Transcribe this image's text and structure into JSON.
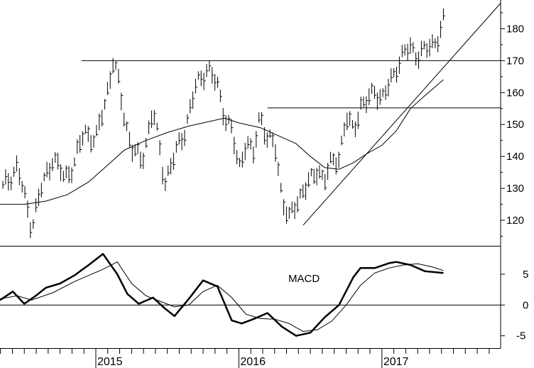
{
  "chart_data": [
    {
      "type": "ohlc",
      "title": "",
      "xlabel": "",
      "ylabel": "",
      "ylim": [
        112,
        189
      ],
      "yticks": [
        120,
        130,
        140,
        150,
        160,
        170,
        180
      ],
      "x_axis_years": [
        "2015",
        "2016",
        "2017"
      ],
      "x_range": [
        2014.33,
        2017.83
      ],
      "grid": false,
      "price_series": {
        "x": [
          2014.35,
          2014.45,
          2014.55,
          2014.62,
          2014.7,
          2014.78,
          2014.85,
          2014.92,
          2015.0,
          2015.07,
          2015.12,
          2015.15,
          2015.2,
          2015.25,
          2015.32,
          2015.4,
          2015.48,
          2015.55,
          2015.62,
          2015.7,
          2015.78,
          2015.85,
          2015.9,
          2015.95,
          2016.0,
          2016.05,
          2016.1,
          2016.15,
          2016.2,
          2016.25,
          2016.3,
          2016.35,
          2016.4,
          2016.45,
          2016.5,
          2016.55,
          2016.6,
          2016.65,
          2016.7,
          2016.75,
          2016.8,
          2016.85,
          2016.9,
          2016.95,
          2017.0,
          2017.05,
          2017.1,
          2017.15,
          2017.2,
          2017.25,
          2017.3,
          2017.35,
          2017.4,
          2017.43
        ],
        "y": [
          130,
          137,
          118,
          130,
          140,
          133,
          138,
          148,
          145,
          158,
          170,
          165,
          152,
          143,
          138,
          155,
          132,
          140,
          148,
          162,
          168,
          162,
          153,
          148,
          136,
          145,
          140,
          154,
          145,
          144,
          128,
          120,
          125,
          130,
          132,
          136,
          133,
          138,
          140,
          152,
          148,
          156,
          157,
          161,
          158,
          162,
          168,
          172,
          174,
          172,
          173,
          175,
          178,
          182
        ]
      },
      "moving_average": {
        "x": [
          2014.33,
          2014.5,
          2014.65,
          2014.8,
          2014.95,
          2015.1,
          2015.2,
          2015.35,
          2015.5,
          2015.65,
          2015.8,
          2015.9,
          2016.0,
          2016.15,
          2016.3,
          2016.4,
          2016.5,
          2016.6,
          2016.7,
          2016.8,
          2016.9,
          2017.0,
          2017.1,
          2017.2,
          2017.3,
          2017.43
        ],
        "y": [
          125,
          125,
          126,
          128,
          132,
          138,
          142,
          145,
          147.5,
          149.5,
          151,
          152,
          150.5,
          149,
          146,
          144,
          140,
          136.5,
          136,
          138,
          141,
          143.5,
          148,
          155,
          159,
          164
        ]
      },
      "horizontal_lines": [
        {
          "y": 170,
          "x_start": 2014.9,
          "x_end": 2017.83
        },
        {
          "y": 155.2,
          "x_start": 2016.2,
          "x_end": 2017.83
        }
      ],
      "trend_line": {
        "x": [
          2016.45,
          2017.83
        ],
        "y": [
          118.5,
          188
        ]
      }
    },
    {
      "type": "line",
      "title": "MACD",
      "xlabel": "",
      "ylabel": "",
      "ylim": [
        -7,
        9.5
      ],
      "yticks": [
        -5,
        0,
        5
      ],
      "zero_line": true,
      "series": [
        {
          "style": "thick",
          "x": [
            2014.33,
            2014.42,
            2014.5,
            2014.58,
            2014.65,
            2014.75,
            2014.85,
            2014.95,
            2015.05,
            2015.15,
            2015.22,
            2015.3,
            2015.4,
            2015.48,
            2015.55,
            2015.65,
            2015.75,
            2015.85,
            2015.95,
            2016.02,
            2016.1,
            2016.2,
            2016.3,
            2016.4,
            2016.5,
            2016.6,
            2016.7,
            2016.8,
            2016.85,
            2016.95,
            2017.05,
            2017.1,
            2017.2,
            2017.3,
            2017.43
          ],
          "y": [
            0.8,
            2.2,
            0.2,
            1.5,
            2.8,
            3.5,
            4.8,
            6.5,
            8.3,
            5,
            1.8,
            0.2,
            1.2,
            -0.5,
            -1.8,
            1,
            4,
            3,
            -2.5,
            -3,
            -2.3,
            -1.3,
            -3.5,
            -5,
            -4.5,
            -2,
            0,
            4.5,
            6,
            6,
            6.8,
            7,
            6.5,
            5.5,
            5.2
          ]
        },
        {
          "style": "thin",
          "x": [
            2014.33,
            2014.45,
            2014.55,
            2014.7,
            2014.85,
            2014.95,
            2015.05,
            2015.15,
            2015.25,
            2015.35,
            2015.45,
            2015.55,
            2015.65,
            2015.75,
            2015.85,
            2015.95,
            2016.05,
            2016.15,
            2016.25,
            2016.35,
            2016.45,
            2016.55,
            2016.65,
            2016.75,
            2016.85,
            2016.95,
            2017.05,
            2017.15,
            2017.25,
            2017.35,
            2017.43
          ],
          "y": [
            1,
            1.5,
            0.8,
            2,
            3.8,
            4.8,
            5.8,
            7,
            3.5,
            1.5,
            0.6,
            -0.3,
            0,
            2.2,
            3.2,
            1.2,
            -1.5,
            -2.2,
            -2.3,
            -3,
            -4.3,
            -4,
            -2.6,
            0,
            3.2,
            5.2,
            6,
            6.5,
            6.7,
            6.2,
            5.6
          ]
        }
      ]
    }
  ],
  "macd_label": "MACD",
  "price_tick_labels": [
    "120",
    "130",
    "140",
    "150",
    "160",
    "170",
    "180"
  ],
  "macd_tick_labels": [
    "-5",
    "0",
    "5"
  ],
  "year_labels": [
    "2015",
    "2016",
    "2017"
  ]
}
